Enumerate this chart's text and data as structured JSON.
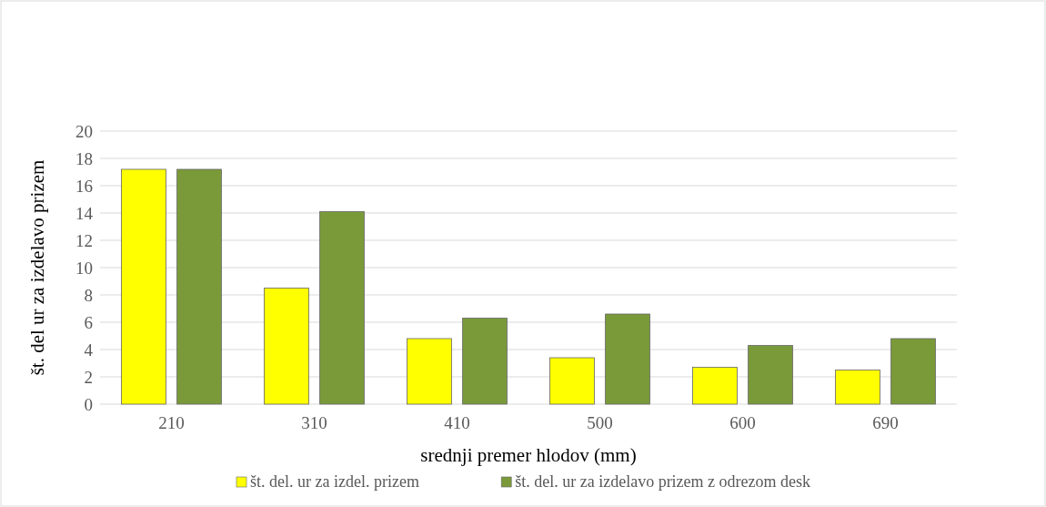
{
  "chart_data": {
    "type": "bar",
    "xlabel": "srednji premer hlodov (mm)",
    "ylabel": "št. del ur za izdelavo prizem",
    "categories": [
      "210",
      "310",
      "410",
      "500",
      "600",
      "690"
    ],
    "series": [
      {
        "name": "št. del. ur za izdel. prizem",
        "color": "#ffff00",
        "values": [
          17.2,
          8.5,
          4.8,
          3.4,
          2.7,
          2.5
        ]
      },
      {
        "name": "št. del. ur za izdelavo prizem z odrezom desk",
        "color": "#7a9a3a",
        "values": [
          17.2,
          14.1,
          6.3,
          6.6,
          4.3,
          4.8
        ]
      }
    ],
    "ylim": [
      0,
      20
    ],
    "yticks": [
      0,
      2,
      4,
      6,
      8,
      10,
      12,
      14,
      16,
      18,
      20
    ],
    "grid": "y",
    "legend": "bottom"
  }
}
